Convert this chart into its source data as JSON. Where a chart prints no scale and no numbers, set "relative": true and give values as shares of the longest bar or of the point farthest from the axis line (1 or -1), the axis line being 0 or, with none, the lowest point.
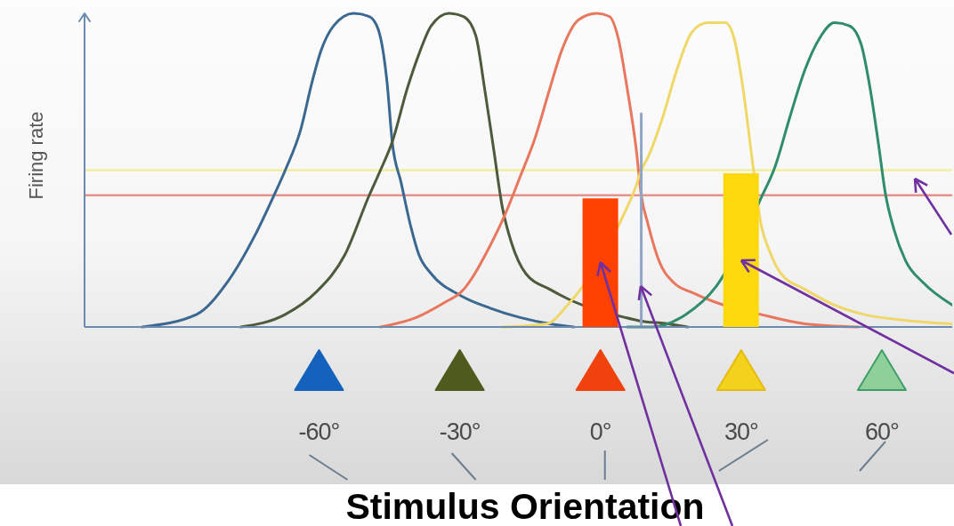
{
  "chart_data": {
    "type": "line",
    "relative": true,
    "xlabel": "Stimulus Orientation",
    "ylabel": "Firing rate",
    "xlim": [
      -110,
      75
    ],
    "xticks": [
      {
        "value": -60,
        "label": "-60°"
      },
      {
        "value": -30,
        "label": "-30°"
      },
      {
        "value": 0,
        "label": "0°"
      },
      {
        "value": 30,
        "label": "30°"
      },
      {
        "value": 60,
        "label": "60°"
      }
    ],
    "ref_lines": [
      {
        "axis": "y",
        "value": 0.5,
        "color": "#f2ef9c"
      },
      {
        "axis": "y",
        "value": 0.42,
        "color": "#e8908c"
      }
    ],
    "series": [
      {
        "color": "#3b6890",
        "x": [
          -97.7,
          -86.1,
          -79.7,
          -73.4,
          -69.6,
          -67.2,
          -63.9,
          -61.5,
          -59.6,
          -56.9,
          -52.6,
          -49.3,
          -47.4,
          -45.5,
          -44.4,
          -42.5,
          -40.6,
          -38.7,
          -36.1,
          -29.8,
          -23.5,
          -17.1,
          -10.8,
          -5.7
        ],
        "values": [
          0,
          0.04,
          0.14,
          0.3,
          0.42,
          0.5,
          0.63,
          0.78,
          0.88,
          0.96,
          1,
          0.99,
          0.95,
          0.78,
          0.59,
          0.46,
          0.33,
          0.23,
          0.17,
          0.1,
          0.06,
          0.03,
          0.01,
          0
        ]
      },
      {
        "color": "#4e5a3c",
        "x": [
          -76.7,
          -67.2,
          -60.7,
          -54.5,
          -49.3,
          -46.9,
          -44.4,
          -41.2,
          -38.7,
          -36.1,
          -32.3,
          -29.2,
          -26.6,
          -24.7,
          -22.8,
          -20.9,
          -19.0,
          -15.9,
          -10.8,
          -7.0,
          5.3,
          8.2,
          14.4,
          18.6
        ],
        "values": [
          0,
          0.04,
          0.11,
          0.23,
          0.42,
          0.5,
          0.59,
          0.76,
          0.87,
          0.96,
          1,
          0.99,
          0.93,
          0.76,
          0.57,
          0.38,
          0.27,
          0.17,
          0.12,
          0.09,
          0.03,
          0.02,
          0.01,
          0
        ]
      },
      {
        "color": "#e8775e",
        "x": [
          -46.9,
          -39.3,
          -33.0,
          -29.8,
          -23.5,
          -20.3,
          -17.1,
          -14.0,
          -10.8,
          -8.3,
          -4.6,
          -0.8,
          1.9,
          3.8,
          5.7,
          7.6,
          8.7,
          10.1,
          12.5,
          15.7,
          19.5,
          24.3,
          34.2,
          43.6,
          55.0
        ],
        "values": [
          0,
          0.03,
          0.08,
          0.11,
          0.26,
          0.36,
          0.48,
          0.6,
          0.76,
          0.88,
          0.98,
          1,
          0.99,
          0.92,
          0.76,
          0.57,
          0.42,
          0.33,
          0.21,
          0.14,
          0.11,
          0.08,
          0.04,
          0.01,
          0
        ]
      },
      {
        "color": "#f0d868",
        "x": [
          -20.9,
          -11.4,
          -7.0,
          5.0,
          7.6,
          8.7,
          10.1,
          13.3,
          16.3,
          19.5,
          22.8,
          26.6,
          28.5,
          30.4,
          32.3,
          34.2,
          36.1,
          38.5,
          43.6,
          49.9,
          56.2,
          65.7,
          75.0
        ],
        "values": [
          0,
          0.01,
          0.07,
          0.36,
          0.45,
          0.5,
          0.54,
          0.67,
          0.82,
          0.94,
          0.97,
          0.97,
          0.92,
          0.76,
          0.54,
          0.33,
          0.24,
          0.17,
          0.12,
          0.07,
          0.04,
          0.02,
          0.01
        ]
      },
      {
        "color": "#2f8d6c",
        "x": [
          5.7,
          11.0,
          18.2,
          24.7,
          34.2,
          37.2,
          40.4,
          43.6,
          46.7,
          49.9,
          53.1,
          55.6,
          57.5,
          59.4,
          60.7,
          62.6,
          65.1,
          68.9,
          75.0
        ],
        "values": [
          0,
          0,
          0.04,
          0.13,
          0.41,
          0.51,
          0.67,
          0.82,
          0.92,
          0.97,
          0.96,
          0.9,
          0.76,
          0.57,
          0.43,
          0.31,
          0.21,
          0.14,
          0.07
        ]
      },
      {
        "color": "#8fa5c6",
        "x": [
          8.7,
          8.7
        ],
        "values": [
          0,
          0.68
        ]
      },
      {
        "type": "bar",
        "x": [
          0,
          30
        ],
        "values": [
          0.41,
          0.49
        ],
        "colors": [
          "#ff4100",
          "#fcd90c"
        ]
      }
    ]
  }
}
